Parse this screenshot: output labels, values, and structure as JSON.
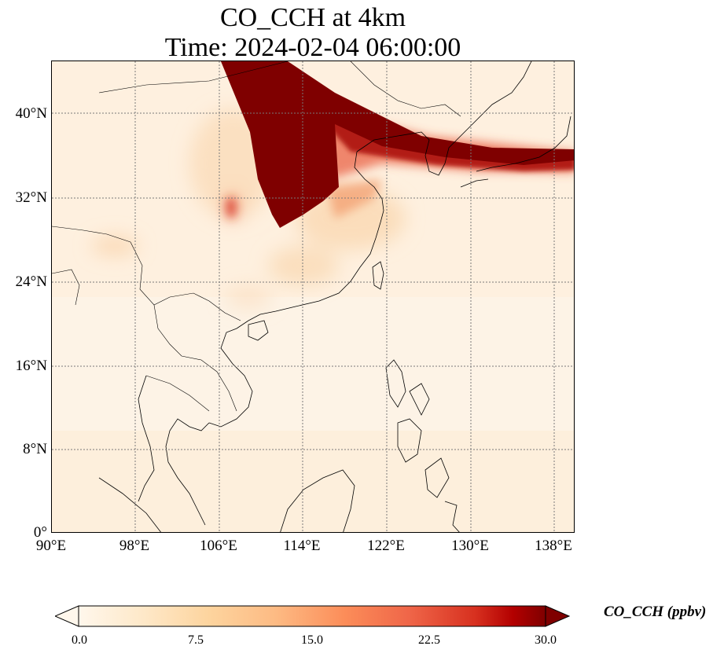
{
  "title": {
    "line1": "CO_CCH at 4km",
    "line2": "Time: 2024-02-04 06:00:00"
  },
  "axes": {
    "y_ticks": [
      "40°N",
      "32°N",
      "24°N",
      "16°N",
      "8°N",
      "0°"
    ],
    "x_ticks": [
      "90°E",
      "98°E",
      "106°E",
      "114°E",
      "122°E",
      "130°E",
      "138°E"
    ],
    "lon_range": [
      90,
      140
    ],
    "lat_range": [
      0,
      45
    ],
    "gridlines": "dotted"
  },
  "colorbar": {
    "label": "CO_CCH (ppbv)",
    "ticks": [
      "0.0",
      "7.5",
      "15.0",
      "22.5",
      "30.0"
    ],
    "range": [
      0,
      30
    ],
    "extend": "both",
    "colormap": "OrRd",
    "colors": [
      "#fff7ec",
      "#fdd49e",
      "#fc8d59",
      "#d7301f",
      "#7f0000"
    ]
  },
  "colors": {
    "background_field": "#fdf1e2",
    "plume_high": "#7f0000",
    "plume_mid": "#c0281c",
    "plume_low": "#f4a582"
  }
}
